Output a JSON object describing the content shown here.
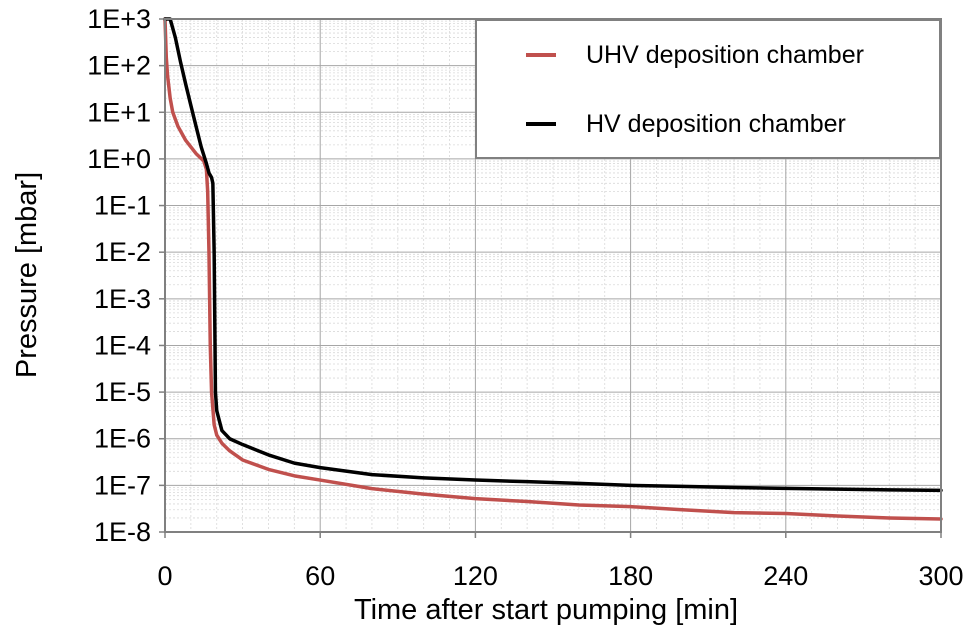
{
  "chart_data": {
    "type": "line",
    "xlabel": "Time after start pumping [min]",
    "ylabel": "Pressure [mbar]",
    "xlim": [
      0,
      300
    ],
    "ylim_log10": [
      -8,
      3
    ],
    "yscale": "log",
    "grid": true,
    "legend_position": "top-right",
    "x_ticks": [
      0,
      60,
      120,
      180,
      240,
      300
    ],
    "x_tick_labels": [
      "0",
      "60",
      "120",
      "180",
      "240",
      "300"
    ],
    "y_ticks_log10": [
      3,
      2,
      1,
      0,
      -1,
      -2,
      -3,
      -4,
      -5,
      -6,
      -7,
      -8
    ],
    "y_tick_labels": [
      "1E+3",
      "1E+2",
      "1E+1",
      "1E+0",
      "1E-1",
      "1E-2",
      "1E-3",
      "1E-4",
      "1E-5",
      "1E-6",
      "1E-7",
      "1E-8"
    ],
    "series": [
      {
        "name": "UHV deposition chamber",
        "color": "#c0504d",
        "x": [
          0,
          0.5,
          1,
          2,
          3,
          5,
          8,
          12,
          15,
          16,
          16.5,
          17,
          17.5,
          18,
          19,
          20,
          22,
          25,
          30,
          40,
          50,
          60,
          80,
          100,
          120,
          140,
          160,
          180,
          200,
          220,
          240,
          260,
          280,
          300
        ],
        "y": [
          1000,
          150,
          60,
          20,
          10,
          5,
          2.5,
          1.3,
          0.9,
          0.6,
          0.2,
          0.01,
          0.0001,
          1e-05,
          2e-06,
          1.2e-06,
          8e-07,
          5.5e-07,
          3.5e-07,
          2.2e-07,
          1.6e-07,
          1.3e-07,
          8.5e-08,
          6.5e-08,
          5.2e-08,
          4.5e-08,
          3.8e-08,
          3.5e-08,
          3e-08,
          2.6e-08,
          2.5e-08,
          2.2e-08,
          2e-08,
          1.9e-08
        ]
      },
      {
        "name": "HV deposition chamber",
        "color": "#000000",
        "x": [
          0,
          2,
          4,
          6,
          8,
          10,
          12,
          14,
          16,
          17,
          18,
          18.5,
          19,
          19.5,
          20,
          22,
          25,
          30,
          40,
          50,
          60,
          80,
          100,
          120,
          140,
          160,
          180,
          200,
          220,
          240,
          260,
          280,
          300
        ],
        "y": [
          1000,
          1000,
          400,
          120,
          40,
          14,
          5,
          1.8,
          0.8,
          0.5,
          0.4,
          0.3,
          0.01,
          1e-05,
          4e-06,
          1.5e-06,
          1e-06,
          7.5e-07,
          4.5e-07,
          3e-07,
          2.4e-07,
          1.7e-07,
          1.45e-07,
          1.3e-07,
          1.2e-07,
          1.1e-07,
          1e-07,
          9.5e-08,
          9e-08,
          8.6e-08,
          8.3e-08,
          8e-08,
          7.8e-08
        ]
      }
    ]
  }
}
